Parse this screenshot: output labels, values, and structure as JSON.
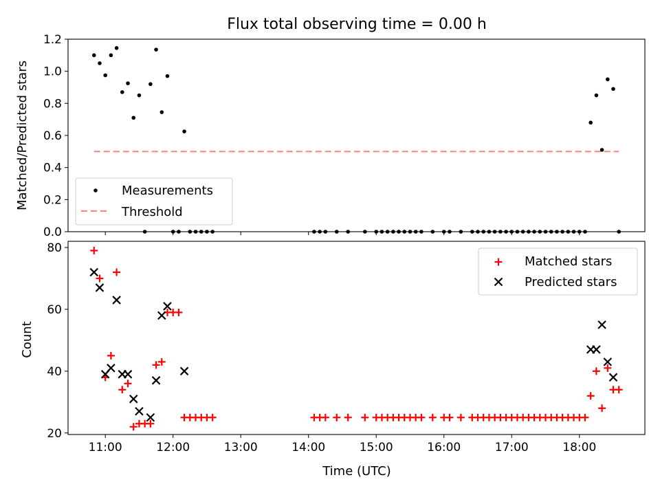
{
  "chart_data": [
    {
      "type": "scatter",
      "title": "Flux total observing time = 0.00 h",
      "xlabel": "",
      "ylabel": "Matched/Predicted stars",
      "ylim": [
        0,
        1.2
      ],
      "xlim": [
        "10:27",
        "18:58"
      ],
      "x_ticks": [
        "11:00",
        "12:00",
        "13:00",
        "14:00",
        "15:00",
        "16:00",
        "17:00",
        "18:00"
      ],
      "y_ticks": [
        "0.0",
        "0.2",
        "0.4",
        "0.6",
        "0.8",
        "1.0",
        "1.2"
      ],
      "grid": false,
      "legend_position": "lower-left",
      "series": [
        {
          "name": "Measurements",
          "marker": "dot",
          "color": "#000000",
          "x": [
            "10:50",
            "10:55",
            "11:00",
            "11:05",
            "11:10",
            "11:15",
            "11:20",
            "11:25",
            "11:30",
            "11:35",
            "11:40",
            "11:45",
            "11:50",
            "11:55",
            "12:00",
            "12:05",
            "12:10",
            "12:15",
            "12:20",
            "12:25",
            "12:30",
            "12:35",
            "14:05",
            "14:10",
            "14:15",
            "14:25",
            "14:35",
            "14:50",
            "15:00",
            "15:05",
            "15:10",
            "15:15",
            "15:20",
            "15:25",
            "15:30",
            "15:35",
            "15:40",
            "15:50",
            "16:00",
            "16:05",
            "16:15",
            "16:25",
            "16:30",
            "16:35",
            "16:40",
            "16:45",
            "16:50",
            "16:55",
            "17:00",
            "17:05",
            "17:10",
            "17:15",
            "17:20",
            "17:25",
            "17:30",
            "17:35",
            "17:40",
            "17:45",
            "17:50",
            "17:55",
            "18:00",
            "18:05",
            "18:10",
            "18:15",
            "18:20",
            "18:25",
            "18:30",
            "18:35"
          ],
          "y": [
            1.1,
            1.05,
            0.975,
            1.1,
            1.145,
            0.87,
            0.925,
            0.71,
            0.85,
            0.0,
            0.92,
            1.135,
            0.745,
            0.97,
            0.0,
            0.0,
            0.625,
            0.0,
            0.0,
            0.0,
            0.0,
            0.0,
            0.0,
            0.0,
            0.0,
            0.0,
            0.0,
            0.0,
            0.0,
            0.0,
            0.0,
            0.0,
            0.0,
            0.0,
            0.0,
            0.0,
            0.0,
            0.0,
            0.0,
            0.0,
            0.0,
            0.0,
            0.0,
            0.0,
            0.0,
            0.0,
            0.0,
            0.0,
            0.0,
            0.0,
            0.0,
            0.0,
            0.0,
            0.0,
            0.0,
            0.0,
            0.0,
            0.0,
            0.0,
            0.0,
            0.0,
            0.0,
            0.68,
            0.85,
            0.51,
            0.95,
            0.89,
            0.0
          ]
        },
        {
          "name": "Threshold",
          "type": "line",
          "style": "dashed",
          "color": "#ff7f7f",
          "x": [
            "10:50",
            "18:35"
          ],
          "y": [
            0.5,
            0.5
          ]
        }
      ]
    },
    {
      "type": "scatter",
      "title": "",
      "xlabel": "Time (UTC)",
      "ylabel": "Count",
      "ylim": [
        19.5,
        82
      ],
      "xlim": [
        "10:27",
        "18:58"
      ],
      "x_ticks": [
        "11:00",
        "12:00",
        "13:00",
        "14:00",
        "15:00",
        "16:00",
        "17:00",
        "18:00"
      ],
      "y_ticks": [
        "20",
        "40",
        "60",
        "80"
      ],
      "grid": false,
      "legend_position": "upper-right",
      "series": [
        {
          "name": "Matched stars",
          "marker": "plus",
          "color": "#ff0000",
          "x": [
            "10:50",
            "10:55",
            "11:00",
            "11:05",
            "11:10",
            "11:15",
            "11:20",
            "11:25",
            "11:30",
            "11:35",
            "11:40",
            "11:45",
            "11:50",
            "11:55",
            "12:00",
            "12:05",
            "12:10",
            "12:15",
            "12:20",
            "12:25",
            "12:30",
            "12:35",
            "14:05",
            "14:10",
            "14:15",
            "14:25",
            "14:35",
            "14:50",
            "15:00",
            "15:05",
            "15:10",
            "15:15",
            "15:20",
            "15:25",
            "15:30",
            "15:35",
            "15:40",
            "15:50",
            "16:00",
            "16:05",
            "16:15",
            "16:25",
            "16:30",
            "16:35",
            "16:40",
            "16:45",
            "16:50",
            "16:55",
            "17:00",
            "17:05",
            "17:10",
            "17:15",
            "17:20",
            "17:25",
            "17:30",
            "17:35",
            "17:40",
            "17:45",
            "17:50",
            "17:55",
            "18:00",
            "18:05",
            "18:10",
            "18:15",
            "18:20",
            "18:25",
            "18:30",
            "18:35"
          ],
          "y": [
            79,
            70,
            38,
            45,
            72,
            34,
            36,
            22,
            23,
            23,
            23,
            42,
            43,
            59,
            59,
            59,
            25,
            25,
            25,
            25,
            25,
            25,
            25,
            25,
            25,
            25,
            25,
            25,
            25,
            25,
            25,
            25,
            25,
            25,
            25,
            25,
            25,
            25,
            25,
            25,
            25,
            25,
            25,
            25,
            25,
            25,
            25,
            25,
            25,
            25,
            25,
            25,
            25,
            25,
            25,
            25,
            25,
            25,
            25,
            25,
            25,
            25,
            32,
            40,
            28,
            41,
            34,
            34
          ]
        },
        {
          "name": "Predicted stars",
          "marker": "x",
          "color": "#000000",
          "x": [
            "10:50",
            "10:55",
            "11:00",
            "11:05",
            "11:10",
            "11:15",
            "11:20",
            "11:25",
            "11:30",
            "11:40",
            "11:45",
            "11:50",
            "11:55",
            "12:10",
            "18:10",
            "18:15",
            "18:20",
            "18:25",
            "18:30"
          ],
          "y": [
            72,
            67,
            39,
            41,
            63,
            39,
            39,
            31,
            27,
            25,
            37,
            58,
            61,
            40,
            47,
            47,
            55,
            43,
            38
          ]
        }
      ]
    }
  ]
}
